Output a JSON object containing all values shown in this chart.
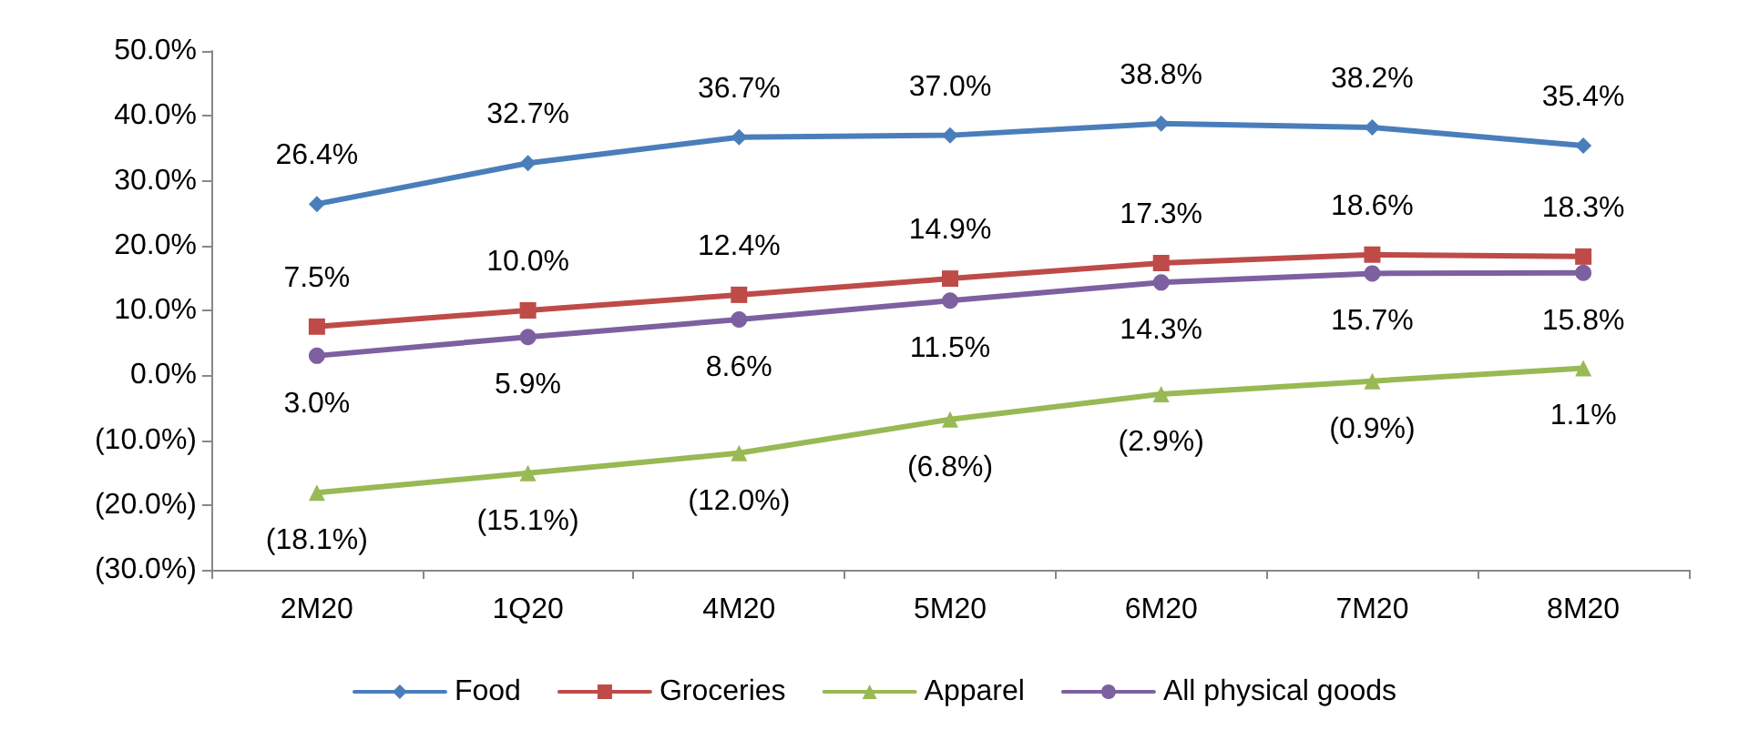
{
  "chart_data": {
    "type": "line",
    "categories": [
      "2M20",
      "1Q20",
      "4M20",
      "5M20",
      "6M20",
      "7M20",
      "8M20"
    ],
    "ylim": [
      -30,
      50
    ],
    "yticks": [
      {
        "value": -30,
        "label": "(30.0%)"
      },
      {
        "value": -20,
        "label": "(20.0%)"
      },
      {
        "value": -10,
        "label": "(10.0%)"
      },
      {
        "value": 0,
        "label": "0.0%"
      },
      {
        "value": 10,
        "label": "10.0%"
      },
      {
        "value": 20,
        "label": "20.0%"
      },
      {
        "value": 30,
        "label": "30.0%"
      },
      {
        "value": 40,
        "label": "40.0%"
      },
      {
        "value": 50,
        "label": "50.0%"
      }
    ],
    "series": [
      {
        "name": "Food",
        "color": "#4a7ebb",
        "marker": "diamond",
        "values": [
          26.4,
          32.7,
          36.7,
          37.0,
          38.8,
          38.2,
          35.4
        ],
        "value_labels": [
          "26.4%",
          "32.7%",
          "36.7%",
          "37.0%",
          "38.8%",
          "38.2%",
          "35.4%"
        ]
      },
      {
        "name": "Groceries",
        "color": "#be4b48",
        "marker": "square",
        "values": [
          7.5,
          10.0,
          12.4,
          14.9,
          17.3,
          18.6,
          18.3
        ],
        "value_labels": [
          "7.5%",
          "10.0%",
          "12.4%",
          "14.9%",
          "17.3%",
          "18.6%",
          "18.3%"
        ]
      },
      {
        "name": "Apparel",
        "color": "#98b954",
        "marker": "triangle",
        "values": [
          -18.1,
          -15.1,
          -12.0,
          -6.8,
          -2.9,
          -0.9,
          1.1
        ],
        "value_labels": [
          "(18.1%)",
          "(15.1%)",
          "(12.0%)",
          "(6.8%)",
          "(2.9%)",
          "(0.9%)",
          "1.1%"
        ]
      },
      {
        "name": "All physical goods",
        "color": "#7d60a0",
        "marker": "circle",
        "values": [
          3.0,
          5.9,
          8.6,
          11.5,
          14.3,
          15.7,
          15.8
        ],
        "value_labels": [
          "3.0%",
          "5.9%",
          "8.6%",
          "11.5%",
          "14.3%",
          "15.7%",
          "15.8%"
        ]
      }
    ],
    "legend": "bottom",
    "grid": false,
    "line_style": "solid"
  }
}
